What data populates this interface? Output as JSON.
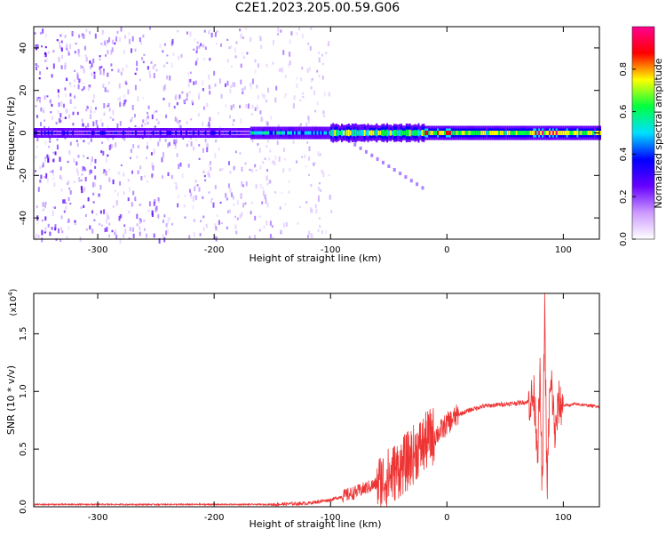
{
  "title": "C2E1.2023.205.00.59.G06",
  "chart_data": [
    {
      "type": "heatmap",
      "xlabel": "Height of straight line (km)",
      "ylabel": "Frequency (Hz)",
      "xlim": [
        -355,
        131
      ],
      "ylim": [
        -50,
        50
      ],
      "x_ticks": [
        -300,
        -200,
        -100,
        0,
        100
      ],
      "y_ticks": [
        -40,
        -20,
        0,
        20,
        40
      ],
      "colorbar": {
        "label": "Normalized spectral amplitude",
        "range": [
          0.0,
          1.0
        ],
        "ticks": [
          "0.0",
          "0.2",
          "0.4",
          "0.6",
          "0.8"
        ],
        "colors": [
          "#ffffff",
          "#cc99ff",
          "#6600ff",
          "#0000ff",
          "#00e0ff",
          "#00ff40",
          "#ffff00",
          "#ff0000",
          "#ff0090"
        ]
      },
      "features": {
        "carrier_frequency_hz": 0,
        "noise_region_x": [
          -355,
          -100
        ],
        "trailing_tail_end": [
          -22,
          -25
        ]
      }
    },
    {
      "type": "line",
      "xlabel": "Height of straight line (km)",
      "ylabel": "SNR (10 * v/v)",
      "y_multiplier": "(x10",
      "y_multiplier_exp": "4",
      "xlim": [
        -355,
        131
      ],
      "ylim": [
        0,
        1.85
      ],
      "x_ticks": [
        -300,
        -200,
        -100,
        0,
        100
      ],
      "y_ticks": [
        "0.0",
        "0.5",
        "1.0",
        "1.5"
      ],
      "color": "#ee3333",
      "series": [
        {
          "x": [
            -355,
            -300,
            -250,
            -200,
            -150,
            -120,
            -100,
            -90,
            -80,
            -70,
            -60,
            -50,
            -45,
            -40,
            -35,
            -30,
            -25,
            -20,
            -15,
            -10,
            -5,
            0,
            10,
            20,
            30,
            40,
            50,
            60,
            70,
            75,
            78,
            80,
            82,
            84,
            86,
            88,
            90,
            93,
            96,
            100,
            105,
            110,
            120,
            131
          ],
          "y": [
            0.02,
            0.02,
            0.02,
            0.02,
            0.02,
            0.03,
            0.06,
            0.09,
            0.12,
            0.16,
            0.2,
            0.26,
            0.3,
            0.34,
            0.38,
            0.44,
            0.5,
            0.54,
            0.6,
            0.62,
            0.66,
            0.72,
            0.8,
            0.84,
            0.87,
            0.88,
            0.89,
            0.9,
            0.91,
            0.95,
            0.5,
            1.1,
            0.08,
            1.78,
            0.1,
            0.9,
            1.05,
            0.6,
            0.9,
            0.88,
            0.88,
            0.89,
            0.88,
            0.87
          ]
        }
      ]
    }
  ]
}
